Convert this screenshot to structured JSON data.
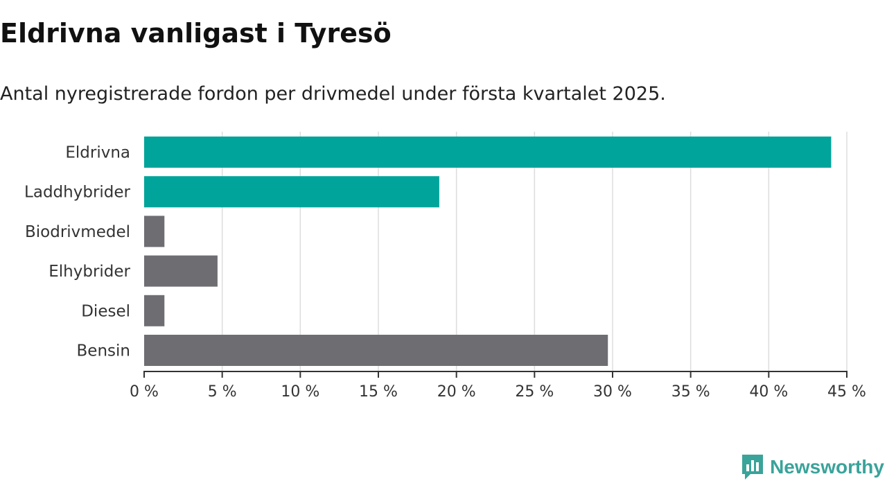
{
  "header": {
    "title": "Eldrivna vanligast i Tyresö",
    "subtitle": "Antal nyregistrerade fordon per drivmedel under första kvartalet 2025."
  },
  "brand": {
    "name": "Newsworthy",
    "color": "#3aa39a"
  },
  "colors": {
    "highlight": "#00a49a",
    "default": "#6e6d72",
    "grid": "#dddddd",
    "axis": "#333333"
  },
  "chart_data": {
    "type": "bar",
    "orientation": "horizontal",
    "categories": [
      "Eldrivna",
      "Laddhybrider",
      "Biodrivmedel",
      "Elhybrider",
      "Diesel",
      "Bensin"
    ],
    "values": [
      44,
      18.9,
      1.3,
      4.7,
      1.3,
      29.7
    ],
    "highlighted": [
      true,
      true,
      false,
      false,
      false,
      false
    ],
    "xlim": [
      0,
      45
    ],
    "ticks": [
      0,
      5,
      10,
      15,
      20,
      25,
      30,
      35,
      40,
      45
    ],
    "tick_labels": [
      "0 %",
      "5 %",
      "10 %",
      "15 %",
      "20 %",
      "25 %",
      "30 %",
      "35 %",
      "40 %",
      "45 %"
    ],
    "xlabel": "",
    "ylabel": "",
    "grid": true,
    "legend": "none"
  }
}
